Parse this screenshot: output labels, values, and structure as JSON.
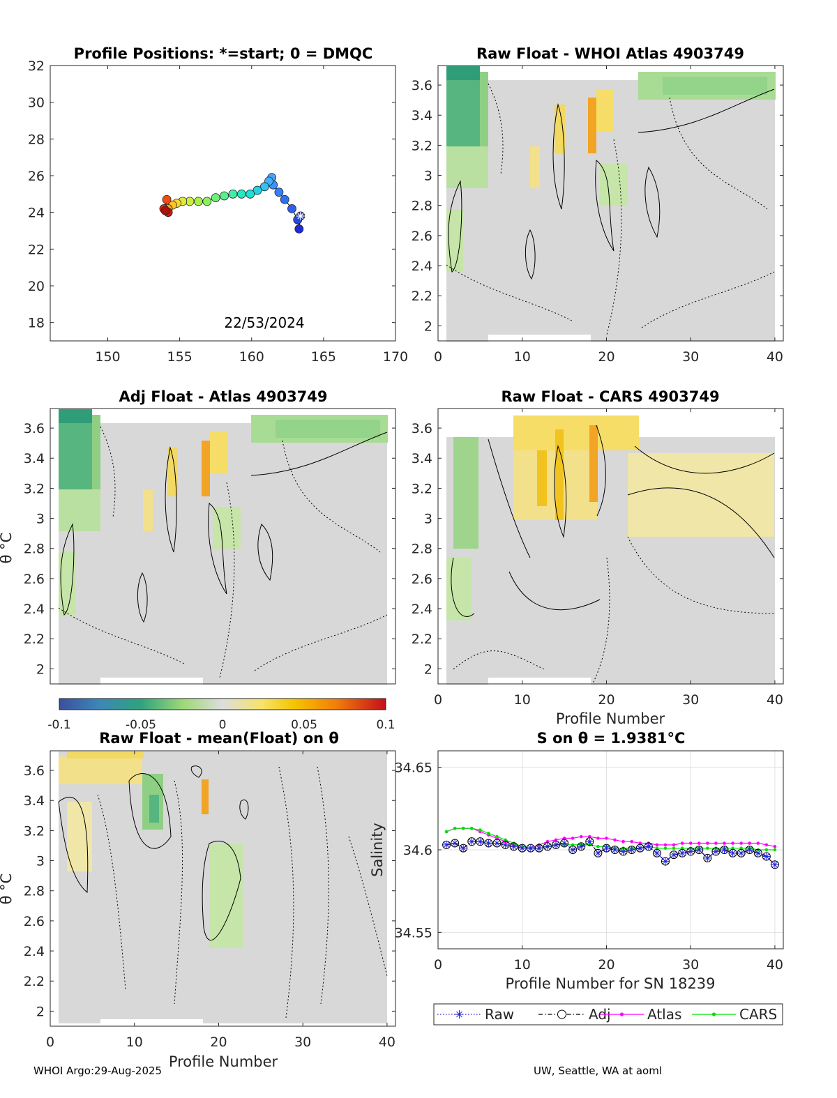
{
  "chart_data": [
    {
      "type": "scatter",
      "id": "positions",
      "title": "Profile Positions: *=start; 0 = DMQC",
      "annotation": "22/53/2024",
      "xlim": [
        146,
        170
      ],
      "ylim": [
        17,
        32
      ],
      "xticks": [
        150,
        155,
        160,
        165,
        170
      ],
      "yticks": [
        18,
        20,
        22,
        24,
        26,
        28,
        30,
        32
      ],
      "points": [
        {
          "lon": 163.4,
          "lat": 23.8,
          "color": "#2d3fc9"
        },
        {
          "lon": 163.3,
          "lat": 23.1,
          "color": "#1f2bd6"
        },
        {
          "lon": 163.2,
          "lat": 23.6,
          "color": "#2449e0"
        },
        {
          "lon": 162.8,
          "lat": 24.2,
          "color": "#2f5ff0"
        },
        {
          "lon": 162.3,
          "lat": 24.7,
          "color": "#2f6ff4"
        },
        {
          "lon": 161.9,
          "lat": 25.1,
          "color": "#3080ff"
        },
        {
          "lon": 161.5,
          "lat": 25.5,
          "color": "#3b91ff"
        },
        {
          "lon": 161.4,
          "lat": 25.9,
          "color": "#46a2ff"
        },
        {
          "lon": 161.2,
          "lat": 25.7,
          "color": "#40b0ff"
        },
        {
          "lon": 160.9,
          "lat": 25.4,
          "color": "#33c2f0"
        },
        {
          "lon": 160.4,
          "lat": 25.2,
          "color": "#22d4e6"
        },
        {
          "lon": 159.9,
          "lat": 25.0,
          "color": "#1ee0d4"
        },
        {
          "lon": 159.3,
          "lat": 25.0,
          "color": "#27e8c0"
        },
        {
          "lon": 158.7,
          "lat": 25.0,
          "color": "#3cf0a8"
        },
        {
          "lon": 158.1,
          "lat": 24.9,
          "color": "#55f090"
        },
        {
          "lon": 157.5,
          "lat": 24.8,
          "color": "#6ef078"
        },
        {
          "lon": 156.9,
          "lat": 24.6,
          "color": "#8cf060"
        },
        {
          "lon": 156.3,
          "lat": 24.6,
          "color": "#aaf048"
        },
        {
          "lon": 155.7,
          "lat": 24.6,
          "color": "#c8f040"
        },
        {
          "lon": 155.2,
          "lat": 24.6,
          "color": "#e2ea38"
        },
        {
          "lon": 154.8,
          "lat": 24.5,
          "color": "#f5d830"
        },
        {
          "lon": 154.5,
          "lat": 24.4,
          "color": "#ffc228"
        },
        {
          "lon": 154.2,
          "lat": 24.2,
          "color": "#ffa020"
        },
        {
          "lon": 154.0,
          "lat": 24.1,
          "color": "#ff7a18"
        },
        {
          "lon": 154.1,
          "lat": 24.7,
          "color": "#f24a14"
        },
        {
          "lon": 153.9,
          "lat": 24.2,
          "color": "#e02a10"
        },
        {
          "lon": 154.2,
          "lat": 24.0,
          "color": "#c81a0c"
        },
        {
          "lon": 154.0,
          "lat": 24.1,
          "color": "#b0100a"
        }
      ]
    },
    {
      "type": "heatmap",
      "id": "raw-minus-whoi",
      "title": "Raw Float - WHOI Atlas  4903749",
      "xlim": [
        0,
        41
      ],
      "ylim": [
        1.9,
        3.73
      ],
      "xticks": [
        0,
        10,
        20,
        30,
        40
      ],
      "yticks": [
        2,
        2.2,
        2.4,
        2.6,
        2.8,
        3,
        3.2,
        3.4,
        3.6
      ],
      "xlabel": "",
      "ylabel": ""
    },
    {
      "type": "heatmap",
      "id": "adj-minus-atlas",
      "title": "Adj Float - Atlas  4903749",
      "xlim": [
        0,
        41
      ],
      "ylim": [
        1.9,
        3.73
      ],
      "yticks": [
        2,
        2.2,
        2.4,
        2.6,
        2.8,
        3,
        3.2,
        3.4,
        3.6
      ],
      "ylabel": "θ °C"
    },
    {
      "type": "heatmap",
      "id": "raw-minus-cars",
      "title": "Raw Float - CARS  4903749",
      "xlim": [
        0,
        41
      ],
      "ylim": [
        1.9,
        3.73
      ],
      "xticks": [
        0,
        10,
        20,
        30,
        40
      ],
      "yticks": [
        2,
        2.2,
        2.4,
        2.6,
        2.8,
        3,
        3.2,
        3.4,
        3.6
      ],
      "xlabel": "Profile Number"
    },
    {
      "type": "heatmap",
      "id": "raw-minus-mean",
      "title": "Raw Float - mean(Float) on θ",
      "xlim": [
        0,
        41
      ],
      "ylim": [
        1.9,
        3.73
      ],
      "xticks": [
        0,
        10,
        20,
        30,
        40
      ],
      "yticks": [
        2,
        2.2,
        2.4,
        2.6,
        2.8,
        3,
        3.2,
        3.4,
        3.6
      ],
      "xlabel": "Profile Number",
      "ylabel": "θ °C"
    },
    {
      "type": "line",
      "id": "salinity",
      "title": "S on θ = 1.9381°C",
      "xlabel": "Profile Number for SN 18239",
      "ylabel": "Salinity",
      "xlim": [
        0,
        41
      ],
      "ylim": [
        34.54,
        34.66
      ],
      "xticks": [
        0,
        10,
        20,
        30,
        40
      ],
      "yticks": [
        34.55,
        34.6,
        34.65
      ],
      "x": [
        1,
        2,
        3,
        4,
        5,
        6,
        7,
        8,
        9,
        10,
        11,
        12,
        13,
        14,
        15,
        16,
        17,
        18,
        19,
        20,
        21,
        22,
        23,
        24,
        25,
        26,
        27,
        28,
        29,
        30,
        31,
        32,
        33,
        34,
        35,
        36,
        37,
        38,
        39,
        40
      ],
      "series": [
        {
          "name": "Raw",
          "color": "#2626d9",
          "values": [
            34.603,
            34.604,
            34.601,
            34.605,
            34.605,
            34.604,
            34.604,
            34.603,
            34.602,
            34.601,
            34.601,
            34.601,
            34.602,
            34.603,
            34.604,
            34.6,
            34.602,
            34.605,
            34.598,
            34.601,
            34.6,
            34.599,
            34.6,
            34.601,
            34.602,
            34.598,
            34.593,
            34.597,
            34.598,
            34.599,
            34.6,
            34.595,
            34.599,
            34.6,
            34.598,
            34.598,
            34.6,
            34.598,
            34.596,
            34.591
          ]
        },
        {
          "name": "Adj",
          "color": "#000000",
          "values": [
            34.603,
            34.604,
            34.601,
            34.605,
            34.605,
            34.604,
            34.604,
            34.603,
            34.602,
            34.601,
            34.601,
            34.601,
            34.602,
            34.603,
            34.604,
            34.6,
            34.602,
            34.605,
            34.598,
            34.601,
            34.6,
            34.599,
            34.6,
            34.601,
            34.602,
            34.598,
            34.593,
            34.597,
            34.598,
            34.599,
            34.6,
            34.595,
            34.599,
            34.6,
            34.598,
            34.598,
            34.6,
            34.598,
            34.596,
            34.591
          ]
        },
        {
          "name": "Atlas",
          "color": "#ff00ff",
          "values": [
            34.611,
            34.613,
            34.613,
            34.613,
            34.611,
            34.609,
            34.607,
            34.605,
            34.603,
            34.602,
            34.601,
            34.603,
            34.605,
            34.606,
            34.607,
            34.607,
            34.608,
            34.608,
            34.607,
            34.607,
            34.606,
            34.605,
            34.605,
            34.604,
            34.604,
            34.603,
            34.603,
            34.603,
            34.604,
            34.604,
            34.604,
            34.604,
            34.604,
            34.604,
            34.604,
            34.604,
            34.604,
            34.604,
            34.603,
            34.602
          ]
        },
        {
          "name": "CARS",
          "color": "#00e000",
          "values": [
            34.611,
            34.613,
            34.613,
            34.613,
            34.612,
            34.61,
            34.608,
            34.606,
            34.604,
            34.602,
            34.601,
            34.601,
            34.602,
            34.603,
            34.603,
            34.603,
            34.603,
            34.603,
            34.602,
            34.602,
            34.601,
            34.601,
            34.601,
            34.601,
            34.602,
            34.601,
            34.601,
            34.601,
            34.601,
            34.601,
            34.601,
            34.601,
            34.601,
            34.601,
            34.601,
            34.601,
            34.601,
            34.6,
            34.6,
            34.6
          ]
        }
      ]
    }
  ],
  "colorbar": {
    "ticks": [
      "-0.1",
      "-0.05",
      "0",
      "0.05",
      "0.1"
    ]
  },
  "footer": {
    "left": "WHOI Argo:29-Aug-2025",
    "right": "UW, Seattle, WA at aoml"
  }
}
